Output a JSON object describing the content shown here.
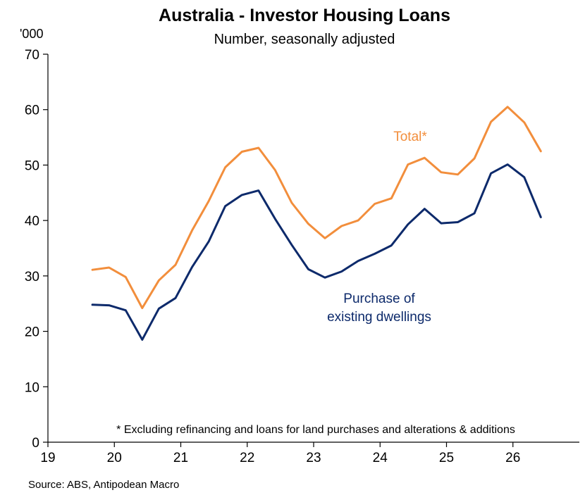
{
  "chart_data": {
    "type": "line",
    "title": "Australia - Investor Housing Loans",
    "subtitle": "Number, seasonally adjusted",
    "y_unit": "'000",
    "ylim": [
      0,
      70
    ],
    "yticks": [
      0,
      10,
      20,
      30,
      40,
      50,
      60,
      70
    ],
    "xlim": [
      19,
      27
    ],
    "xticks": [
      19,
      20,
      21,
      22,
      23,
      24,
      25,
      26
    ],
    "xtick_labels": [
      "19",
      "20",
      "21",
      "22",
      "23",
      "24",
      "25",
      "26"
    ],
    "grid": false,
    "x": [
      19.67,
      19.92,
      20.17,
      20.42,
      20.67,
      20.92,
      21.17,
      21.42,
      21.67,
      21.92,
      22.17,
      22.42,
      22.67,
      22.92,
      23.17,
      23.42,
      23.67,
      23.92,
      24.17,
      24.42,
      24.67,
      24.92,
      25.17,
      25.42,
      25.67,
      25.92,
      26.17,
      26.42
    ],
    "series": [
      {
        "name": "Total*",
        "color": "#f28e3c",
        "label_lines": [
          "Total*"
        ],
        "values": [
          31.1,
          31.5,
          29.8,
          24.2,
          29.2,
          32.0,
          38.2,
          43.5,
          49.6,
          52.4,
          53.1,
          49.1,
          43.2,
          39.4,
          36.8,
          39.0,
          40.0,
          43.0,
          44.0,
          50.1,
          51.3,
          48.7,
          48.3,
          51.2,
          57.8,
          60.5,
          57.7,
          52.5
        ]
      },
      {
        "name": "Purchase of existing dwellings",
        "color": "#0d2a6b",
        "label_lines": [
          "Purchase of",
          "existing dwellings"
        ],
        "values": [
          24.8,
          24.7,
          23.8,
          18.5,
          24.1,
          26.0,
          31.6,
          36.2,
          42.6,
          44.6,
          45.4,
          40.3,
          35.6,
          31.2,
          29.7,
          30.8,
          32.7,
          34.0,
          35.5,
          39.3,
          42.1,
          39.5,
          39.7,
          41.3,
          48.5,
          50.1,
          47.8,
          40.6
        ]
      }
    ],
    "footnote": "* Excluding refinancing and loans for land purchases and alterations & additions",
    "source": "Source: ABS, Antipodean Macro"
  }
}
